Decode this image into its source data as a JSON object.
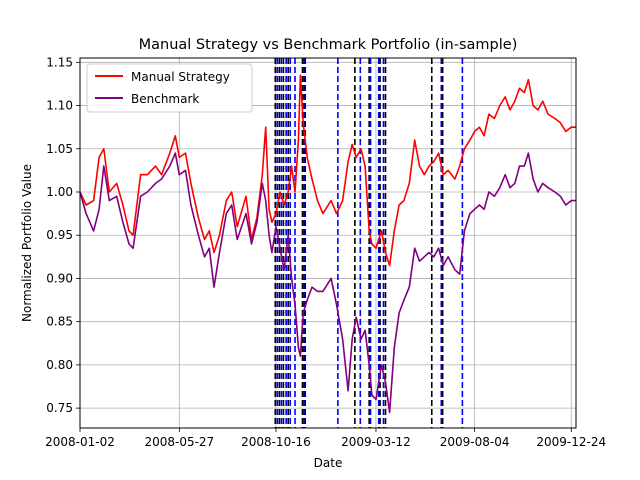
{
  "chart_data": {
    "type": "line",
    "title": "Manual Strategy vs Benchmark Portfolio (in-sample)",
    "xlabel": "Date",
    "ylabel": "Normalized Portfolio Value",
    "xlim": [
      "2008-01-02",
      "2009-12-31"
    ],
    "ylim": [
      0.727,
      1.155
    ],
    "x_ticks": [
      "2008-01-02",
      "2008-05-27",
      "2008-10-16",
      "2009-03-12",
      "2009-08-04",
      "2009-12-24"
    ],
    "y_ticks": [
      "0.75",
      "0.80",
      "0.85",
      "0.90",
      "0.95",
      "1.00",
      "1.05",
      "1.10",
      "1.15"
    ],
    "grid": true,
    "legend_position": "upper-left",
    "series": [
      {
        "name": "Manual Strategy",
        "color": "#ff0000",
        "points": [
          [
            "2008-01-02",
            1.0
          ],
          [
            "2008-01-11",
            0.985
          ],
          [
            "2008-01-22",
            0.99
          ],
          [
            "2008-01-30",
            1.04
          ],
          [
            "2008-02-06",
            1.05
          ],
          [
            "2008-02-14",
            1.0
          ],
          [
            "2008-02-25",
            1.01
          ],
          [
            "2008-03-05",
            0.985
          ],
          [
            "2008-03-14",
            0.955
          ],
          [
            "2008-03-20",
            0.95
          ],
          [
            "2008-03-31",
            1.02
          ],
          [
            "2008-04-10",
            1.02
          ],
          [
            "2008-04-22",
            1.03
          ],
          [
            "2008-05-01",
            1.02
          ],
          [
            "2008-05-13",
            1.045
          ],
          [
            "2008-05-21",
            1.065
          ],
          [
            "2008-05-27",
            1.04
          ],
          [
            "2008-06-05",
            1.045
          ],
          [
            "2008-06-13",
            1.01
          ],
          [
            "2008-06-24",
            0.97
          ],
          [
            "2008-07-03",
            0.945
          ],
          [
            "2008-07-10",
            0.955
          ],
          [
            "2008-07-17",
            0.93
          ],
          [
            "2008-07-25",
            0.95
          ],
          [
            "2008-08-04",
            0.99
          ],
          [
            "2008-08-12",
            1.0
          ],
          [
            "2008-08-20",
            0.96
          ],
          [
            "2008-09-02",
            0.995
          ],
          [
            "2008-09-10",
            0.945
          ],
          [
            "2008-09-18",
            0.97
          ],
          [
            "2008-09-26",
            1.02
          ],
          [
            "2008-10-01",
            1.075
          ],
          [
            "2008-10-06",
            0.98
          ],
          [
            "2008-10-10",
            0.965
          ],
          [
            "2008-10-16",
            0.975
          ],
          [
            "2008-10-22",
            1.0
          ],
          [
            "2008-10-28",
            0.985
          ],
          [
            "2008-11-03",
            1.0
          ],
          [
            "2008-11-08",
            1.03
          ],
          [
            "2008-11-13",
            1.0
          ],
          [
            "2008-11-18",
            1.06
          ],
          [
            "2008-11-21",
            1.135
          ],
          [
            "2008-11-25",
            1.08
          ],
          [
            "2008-12-01",
            1.04
          ],
          [
            "2008-12-08",
            1.015
          ],
          [
            "2008-12-16",
            0.99
          ],
          [
            "2008-12-24",
            0.975
          ],
          [
            "2009-01-05",
            0.99
          ],
          [
            "2009-01-13",
            0.975
          ],
          [
            "2009-01-22",
            0.99
          ],
          [
            "2009-01-30",
            1.035
          ],
          [
            "2009-02-05",
            1.055
          ],
          [
            "2009-02-11",
            1.04
          ],
          [
            "2009-02-18",
            1.05
          ],
          [
            "2009-02-24",
            1.03
          ],
          [
            "2009-03-02",
            0.955
          ],
          [
            "2009-03-06",
            0.94
          ],
          [
            "2009-03-12",
            0.935
          ],
          [
            "2009-03-20",
            0.955
          ],
          [
            "2009-03-26",
            0.93
          ],
          [
            "2009-04-01",
            0.915
          ],
          [
            "2009-04-08",
            0.955
          ],
          [
            "2009-04-15",
            0.985
          ],
          [
            "2009-04-22",
            0.99
          ],
          [
            "2009-04-30",
            1.01
          ],
          [
            "2009-05-08",
            1.06
          ],
          [
            "2009-05-15",
            1.03
          ],
          [
            "2009-05-22",
            1.02
          ],
          [
            "2009-05-29",
            1.03
          ],
          [
            "2009-06-05",
            1.035
          ],
          [
            "2009-06-12",
            1.045
          ],
          [
            "2009-06-19",
            1.02
          ],
          [
            "2009-06-26",
            1.025
          ],
          [
            "2009-07-06",
            1.015
          ],
          [
            "2009-07-13",
            1.03
          ],
          [
            "2009-07-20",
            1.05
          ],
          [
            "2009-07-28",
            1.06
          ],
          [
            "2009-08-04",
            1.07
          ],
          [
            "2009-08-11",
            1.075
          ],
          [
            "2009-08-18",
            1.065
          ],
          [
            "2009-08-25",
            1.09
          ],
          [
            "2009-09-02",
            1.085
          ],
          [
            "2009-09-10",
            1.1
          ],
          [
            "2009-09-18",
            1.11
          ],
          [
            "2009-09-25",
            1.095
          ],
          [
            "2009-10-02",
            1.105
          ],
          [
            "2009-10-09",
            1.12
          ],
          [
            "2009-10-16",
            1.115
          ],
          [
            "2009-10-22",
            1.13
          ],
          [
            "2009-10-29",
            1.1
          ],
          [
            "2009-11-05",
            1.095
          ],
          [
            "2009-11-12",
            1.105
          ],
          [
            "2009-11-20",
            1.09
          ],
          [
            "2009-11-30",
            1.085
          ],
          [
            "2009-12-08",
            1.08
          ],
          [
            "2009-12-16",
            1.07
          ],
          [
            "2009-12-24",
            1.075
          ],
          [
            "2009-12-31",
            1.075
          ]
        ]
      },
      {
        "name": "Benchmark",
        "color": "#800080",
        "points": [
          [
            "2008-01-02",
            1.0
          ],
          [
            "2008-01-11",
            0.975
          ],
          [
            "2008-01-22",
            0.955
          ],
          [
            "2008-01-30",
            0.98
          ],
          [
            "2008-02-06",
            1.03
          ],
          [
            "2008-02-14",
            0.99
          ],
          [
            "2008-02-25",
            0.995
          ],
          [
            "2008-03-05",
            0.965
          ],
          [
            "2008-03-14",
            0.94
          ],
          [
            "2008-03-20",
            0.935
          ],
          [
            "2008-03-31",
            0.995
          ],
          [
            "2008-04-10",
            1.0
          ],
          [
            "2008-04-22",
            1.01
          ],
          [
            "2008-05-01",
            1.015
          ],
          [
            "2008-05-13",
            1.03
          ],
          [
            "2008-05-21",
            1.045
          ],
          [
            "2008-05-27",
            1.02
          ],
          [
            "2008-06-05",
            1.025
          ],
          [
            "2008-06-13",
            0.985
          ],
          [
            "2008-06-24",
            0.95
          ],
          [
            "2008-07-03",
            0.925
          ],
          [
            "2008-07-10",
            0.935
          ],
          [
            "2008-07-17",
            0.89
          ],
          [
            "2008-07-25",
            0.93
          ],
          [
            "2008-08-04",
            0.975
          ],
          [
            "2008-08-12",
            0.985
          ],
          [
            "2008-08-20",
            0.945
          ],
          [
            "2008-09-02",
            0.975
          ],
          [
            "2008-09-10",
            0.94
          ],
          [
            "2008-09-18",
            0.965
          ],
          [
            "2008-09-26",
            1.01
          ],
          [
            "2008-10-01",
            0.99
          ],
          [
            "2008-10-06",
            0.95
          ],
          [
            "2008-10-10",
            0.93
          ],
          [
            "2008-10-16",
            0.96
          ],
          [
            "2008-10-22",
            0.935
          ],
          [
            "2008-10-28",
            0.91
          ],
          [
            "2008-11-03",
            0.95
          ],
          [
            "2008-11-08",
            0.9
          ],
          [
            "2008-11-13",
            0.87
          ],
          [
            "2008-11-18",
            0.82
          ],
          [
            "2008-11-21",
            0.81
          ],
          [
            "2008-11-25",
            0.86
          ],
          [
            "2008-12-01",
            0.875
          ],
          [
            "2008-12-08",
            0.89
          ],
          [
            "2008-12-16",
            0.885
          ],
          [
            "2008-12-24",
            0.885
          ],
          [
            "2009-01-05",
            0.9
          ],
          [
            "2009-01-13",
            0.87
          ],
          [
            "2009-01-22",
            0.83
          ],
          [
            "2009-01-30",
            0.77
          ],
          [
            "2009-02-05",
            0.83
          ],
          [
            "2009-02-11",
            0.855
          ],
          [
            "2009-02-18",
            0.83
          ],
          [
            "2009-02-24",
            0.84
          ],
          [
            "2009-03-02",
            0.8
          ],
          [
            "2009-03-06",
            0.765
          ],
          [
            "2009-03-12",
            0.76
          ],
          [
            "2009-03-20",
            0.8
          ],
          [
            "2009-03-26",
            0.78
          ],
          [
            "2009-04-01",
            0.745
          ],
          [
            "2009-04-08",
            0.82
          ],
          [
            "2009-04-15",
            0.86
          ],
          [
            "2009-04-22",
            0.875
          ],
          [
            "2009-04-30",
            0.89
          ],
          [
            "2009-05-08",
            0.935
          ],
          [
            "2009-05-15",
            0.92
          ],
          [
            "2009-05-22",
            0.925
          ],
          [
            "2009-05-29",
            0.93
          ],
          [
            "2009-06-05",
            0.925
          ],
          [
            "2009-06-12",
            0.935
          ],
          [
            "2009-06-19",
            0.915
          ],
          [
            "2009-06-26",
            0.925
          ],
          [
            "2009-07-06",
            0.91
          ],
          [
            "2009-07-13",
            0.905
          ],
          [
            "2009-07-20",
            0.955
          ],
          [
            "2009-07-28",
            0.975
          ],
          [
            "2009-08-04",
            0.98
          ],
          [
            "2009-08-11",
            0.985
          ],
          [
            "2009-08-18",
            0.98
          ],
          [
            "2009-08-25",
            1.0
          ],
          [
            "2009-09-02",
            0.995
          ],
          [
            "2009-09-10",
            1.005
          ],
          [
            "2009-09-18",
            1.02
          ],
          [
            "2009-09-25",
            1.005
          ],
          [
            "2009-10-02",
            1.01
          ],
          [
            "2009-10-09",
            1.03
          ],
          [
            "2009-10-16",
            1.03
          ],
          [
            "2009-10-22",
            1.045
          ],
          [
            "2009-10-29",
            1.015
          ],
          [
            "2009-11-05",
            1.0
          ],
          [
            "2009-11-12",
            1.01
          ],
          [
            "2009-11-20",
            1.005
          ],
          [
            "2009-11-30",
            1.0
          ],
          [
            "2009-12-08",
            0.995
          ],
          [
            "2009-12-16",
            0.985
          ],
          [
            "2009-12-24",
            0.99
          ],
          [
            "2009-12-31",
            0.99
          ]
        ]
      }
    ],
    "vertical_markers": {
      "black_dashed": [
        "2008-10-15",
        "2008-10-21",
        "2008-10-27",
        "2008-11-03",
        "2008-11-24",
        "2008-11-28",
        "2009-02-09",
        "2009-03-02",
        "2009-03-18",
        "2009-03-26",
        "2009-06-02",
        "2009-06-18"
      ],
      "blue_dashed": [
        "2008-10-18",
        "2008-10-24",
        "2008-10-31",
        "2008-11-06",
        "2008-11-13",
        "2008-11-26",
        "2009-01-15",
        "2009-02-17",
        "2009-03-04",
        "2009-03-16",
        "2009-03-23",
        "2009-06-16",
        "2009-07-17"
      ]
    }
  }
}
